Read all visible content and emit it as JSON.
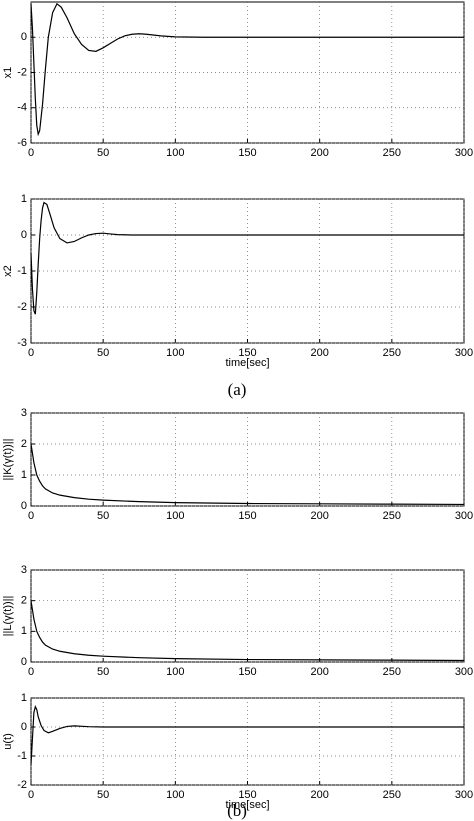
{
  "captions": [
    "(a)",
    "(b)"
  ],
  "chart_data": [
    {
      "type": "line",
      "ylabel": "x1",
      "color": "#000000",
      "grid": true,
      "x": [
        0,
        1,
        2,
        3,
        4,
        5,
        6,
        8,
        10,
        12,
        15,
        18,
        21,
        25,
        30,
        35,
        40,
        45,
        50,
        55,
        60,
        65,
        70,
        75,
        80,
        90,
        100,
        120,
        150,
        200,
        250,
        300
      ],
      "values": [
        1.9,
        0.5,
        -1.5,
        -3.5,
        -5,
        -5.5,
        -5.3,
        -3.8,
        -1.8,
        0,
        1.4,
        1.9,
        1.7,
        1.1,
        0.2,
        -0.4,
        -0.75,
        -0.8,
        -0.6,
        -0.35,
        -0.1,
        0.08,
        0.17,
        0.2,
        0.17,
        0.08,
        0.02,
        0,
        0,
        0,
        0,
        0
      ],
      "xlim": [
        0,
        300
      ],
      "xticks": [
        0,
        50,
        100,
        150,
        200,
        250,
        300
      ],
      "ylim": [
        -6,
        2
      ],
      "yticks": [
        -6,
        -4,
        -2,
        0
      ]
    },
    {
      "type": "line",
      "ylabel": "x2",
      "xlabel": "time[sec]",
      "color": "#000000",
      "grid": true,
      "x": [
        0,
        1,
        2,
        3,
        4,
        5,
        6,
        7,
        8,
        9,
        11,
        13,
        16,
        20,
        25,
        30,
        35,
        40,
        45,
        50,
        55,
        60,
        70,
        100,
        150,
        200,
        250,
        300
      ],
      "values": [
        -0.5,
        -1.5,
        -2.1,
        -2.2,
        -1.6,
        -0.8,
        -0.1,
        0.4,
        0.75,
        0.9,
        0.85,
        0.6,
        0.2,
        -0.1,
        -0.22,
        -0.18,
        -0.08,
        0,
        0.04,
        0.05,
        0.03,
        0.01,
        0,
        0,
        0,
        0,
        0,
        0
      ],
      "xlim": [
        0,
        300
      ],
      "xticks": [
        0,
        50,
        100,
        150,
        200,
        250,
        300
      ],
      "ylim": [
        -3,
        1
      ],
      "yticks": [
        -3,
        -2,
        -1,
        0,
        1
      ]
    },
    {
      "type": "line",
      "ylabel": "||K(γ(t))||",
      "color": "#000000",
      "grid": true,
      "x": [
        0,
        2,
        4,
        6,
        8,
        10,
        15,
        20,
        30,
        40,
        50,
        75,
        100,
        150,
        200,
        250,
        300
      ],
      "values": [
        2.0,
        1.4,
        1.0,
        0.8,
        0.65,
        0.55,
        0.42,
        0.35,
        0.27,
        0.22,
        0.19,
        0.14,
        0.11,
        0.08,
        0.07,
        0.06,
        0.05
      ],
      "xlim": [
        0,
        300
      ],
      "xticks": [
        0,
        50,
        100,
        150,
        200,
        250,
        300
      ],
      "ylim": [
        0,
        3
      ],
      "yticks": [
        0,
        1,
        2,
        3
      ]
    },
    {
      "type": "line",
      "ylabel": "||L(γ(t))||",
      "color": "#000000",
      "grid": true,
      "x": [
        0,
        2,
        4,
        6,
        8,
        10,
        15,
        20,
        30,
        40,
        50,
        75,
        100,
        150,
        200,
        250,
        300
      ],
      "values": [
        2.0,
        1.4,
        1.0,
        0.8,
        0.65,
        0.55,
        0.42,
        0.35,
        0.27,
        0.22,
        0.19,
        0.14,
        0.11,
        0.08,
        0.07,
        0.06,
        0.05
      ],
      "xlim": [
        0,
        300
      ],
      "xticks": [
        0,
        50,
        100,
        150,
        200,
        250,
        300
      ],
      "ylim": [
        0,
        3
      ],
      "yticks": [
        0,
        1,
        2,
        3
      ]
    },
    {
      "type": "line",
      "ylabel": "u(t)",
      "xlabel": "time[sec]",
      "color": "#000000",
      "grid": true,
      "x": [
        0,
        1,
        2,
        3,
        4,
        5,
        7,
        9,
        12,
        15,
        20,
        25,
        30,
        40,
        50,
        100,
        150,
        200,
        250,
        300
      ],
      "values": [
        -1.3,
        -0.4,
        0.5,
        0.7,
        0.6,
        0.35,
        0.05,
        -0.12,
        -0.2,
        -0.15,
        -0.05,
        0.02,
        0.04,
        0.01,
        0,
        0,
        0,
        0,
        0,
        0
      ],
      "xlim": [
        0,
        300
      ],
      "xticks": [
        0,
        50,
        100,
        150,
        200,
        250,
        300
      ],
      "ylim": [
        -2,
        1
      ],
      "yticks": [
        -2,
        -1,
        0,
        1
      ]
    }
  ]
}
